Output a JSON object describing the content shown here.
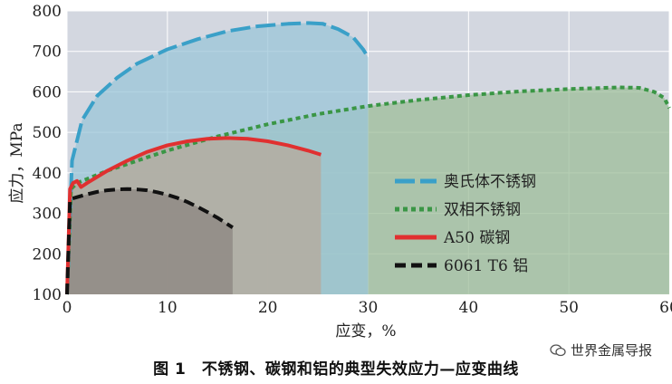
{
  "chart_data": {
    "type": "line",
    "title": "",
    "xlabel": "应变，%",
    "ylabel": "应力，MPa",
    "xlim": [
      0,
      60
    ],
    "ylim": [
      100,
      800
    ],
    "xticks": [
      0,
      10,
      20,
      30,
      40,
      50,
      60
    ],
    "yticks": [
      100,
      200,
      300,
      400,
      500,
      600,
      700,
      800
    ],
    "grid": true,
    "legend_position": "right-center",
    "series": [
      {
        "name": "奥氏体不锈钢",
        "color": "#3aa0c8",
        "dash": "long-dash",
        "fill": "#9bc6d8",
        "x": [
          0,
          0.5,
          1.5,
          3,
          5,
          7,
          10,
          13,
          16,
          19,
          22,
          24,
          25.5,
          27,
          28.5,
          29.5,
          30
        ],
        "y": [
          100,
          430,
          530,
          590,
          635,
          670,
          705,
          730,
          750,
          762,
          768,
          770,
          768,
          755,
          735,
          705,
          685
        ]
      },
      {
        "name": "双相不锈钢",
        "color": "#3a9645",
        "dash": "dotted",
        "fill": "#9ebe9a",
        "x": [
          0,
          0.4,
          1,
          2,
          4,
          7,
          10,
          15,
          20,
          25,
          30,
          35,
          40,
          45,
          50,
          55,
          57,
          58.5,
          59.5,
          60
        ],
        "y": [
          100,
          360,
          375,
          385,
          405,
          430,
          455,
          490,
          520,
          545,
          565,
          580,
          592,
          601,
          607,
          611,
          610,
          600,
          585,
          560
        ]
      },
      {
        "name": "A50 碳钢",
        "color": "#e03030",
        "dash": "solid",
        "fill": "#b7a89a",
        "x": [
          0,
          0.3,
          0.6,
          1.0,
          1.4,
          2,
          4,
          6,
          8,
          10,
          12,
          14,
          16,
          18,
          20,
          22,
          24,
          25.3
        ],
        "y": [
          100,
          360,
          375,
          380,
          365,
          375,
          405,
          430,
          452,
          468,
          478,
          484,
          486,
          484,
          478,
          468,
          455,
          445
        ]
      },
      {
        "name": "6061 T6 铝",
        "color": "#111111",
        "dash": "dashed",
        "fill": "#8c8580",
        "x": [
          0,
          0.3,
          1,
          2,
          3,
          4,
          5,
          6,
          7,
          8,
          9,
          10,
          11,
          12,
          13,
          14,
          15,
          16.5
        ],
        "y": [
          100,
          335,
          340,
          347,
          353,
          357,
          359,
          360,
          359,
          357,
          352,
          346,
          338,
          328,
          316,
          303,
          289,
          265
        ]
      }
    ]
  },
  "caption": "图 1　不锈钢、碳钢和铝的典型失效应力—应变曲线",
  "watermark": "世界金属导报"
}
